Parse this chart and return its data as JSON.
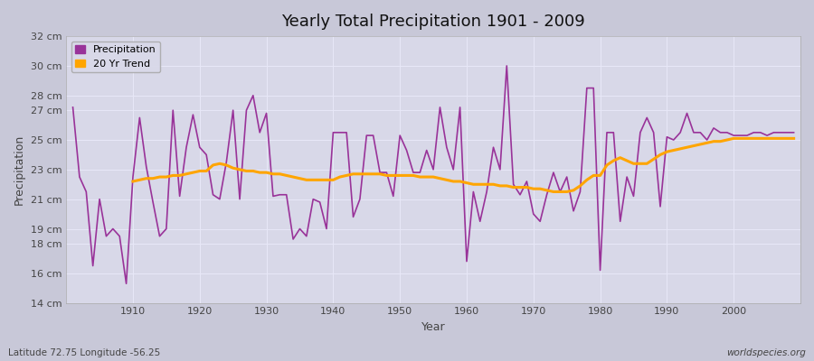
{
  "title": "Yearly Total Precipitation 1901 - 2009",
  "xlabel": "Year",
  "ylabel": "Precipitation",
  "subtitle_left": "Latitude 72.75 Longitude -56.25",
  "subtitle_right": "worldspecies.org",
  "years": [
    1901,
    1902,
    1903,
    1904,
    1905,
    1906,
    1907,
    1908,
    1909,
    1910,
    1911,
    1912,
    1913,
    1914,
    1915,
    1916,
    1917,
    1918,
    1919,
    1920,
    1921,
    1922,
    1923,
    1924,
    1925,
    1926,
    1927,
    1928,
    1929,
    1930,
    1931,
    1932,
    1933,
    1934,
    1935,
    1936,
    1937,
    1938,
    1939,
    1940,
    1941,
    1942,
    1943,
    1944,
    1945,
    1946,
    1947,
    1948,
    1949,
    1950,
    1951,
    1952,
    1953,
    1954,
    1955,
    1956,
    1957,
    1958,
    1959,
    1960,
    1961,
    1962,
    1963,
    1964,
    1965,
    1966,
    1967,
    1968,
    1969,
    1970,
    1971,
    1972,
    1973,
    1974,
    1975,
    1976,
    1977,
    1978,
    1979,
    1980,
    1981,
    1982,
    1983,
    1984,
    1985,
    1986,
    1987,
    1988,
    1989,
    1990,
    1991,
    1992,
    1993,
    1994,
    1995,
    1996,
    1997,
    1998,
    1999,
    2000,
    2001,
    2002,
    2003,
    2004,
    2005,
    2006,
    2007,
    2008,
    2009
  ],
  "precipitation": [
    27.2,
    22.5,
    21.5,
    16.5,
    21.0,
    18.5,
    19.0,
    18.5,
    15.3,
    22.5,
    26.5,
    23.2,
    20.8,
    18.5,
    19.0,
    27.0,
    21.2,
    24.5,
    26.7,
    24.5,
    24.0,
    21.3,
    21.0,
    23.5,
    27.0,
    21.0,
    27.0,
    28.0,
    25.5,
    26.8,
    21.2,
    21.3,
    21.3,
    18.3,
    19.0,
    18.5,
    21.0,
    20.8,
    19.0,
    25.5,
    25.5,
    25.5,
    19.8,
    21.0,
    25.3,
    25.3,
    22.8,
    22.8,
    21.2,
    25.3,
    24.3,
    22.8,
    22.8,
    24.3,
    23.0,
    27.2,
    24.5,
    23.0,
    27.2,
    16.8,
    21.5,
    19.5,
    21.5,
    24.5,
    23.0,
    30.0,
    22.0,
    21.3,
    22.2,
    20.0,
    19.5,
    21.3,
    22.8,
    21.5,
    22.5,
    20.2,
    21.5,
    28.5,
    28.5,
    16.2,
    25.5,
    25.5,
    19.5,
    22.5,
    21.2,
    25.5,
    26.5,
    25.5,
    20.5,
    25.2,
    25.0,
    25.5,
    26.8,
    25.5,
    25.5,
    25.0,
    25.8,
    25.5,
    25.5,
    25.3,
    25.3,
    25.3,
    25.5,
    25.5,
    25.3,
    25.5,
    25.5,
    25.5,
    25.5
  ],
  "trend_years": [
    1910,
    1911,
    1912,
    1913,
    1914,
    1915,
    1916,
    1917,
    1918,
    1919,
    1920,
    1921,
    1922,
    1923,
    1924,
    1925,
    1926,
    1927,
    1928,
    1929,
    1930,
    1931,
    1932,
    1933,
    1934,
    1935,
    1936,
    1937,
    1938,
    1939,
    1940,
    1941,
    1942,
    1943,
    1944,
    1945,
    1946,
    1947,
    1948,
    1949,
    1950,
    1951,
    1952,
    1953,
    1954,
    1955,
    1956,
    1957,
    1958,
    1959,
    1960,
    1961,
    1962,
    1963,
    1964,
    1965,
    1966,
    1967,
    1968,
    1969,
    1970,
    1971,
    1972,
    1973,
    1974,
    1975,
    1976,
    1977,
    1978,
    1979,
    1980,
    1981,
    1982,
    1983,
    1984,
    1985,
    1986,
    1987,
    1988,
    1989,
    1990,
    1991,
    1992,
    1993,
    1994,
    1995,
    1996,
    1997,
    1998,
    1999,
    2000,
    2001,
    2002,
    2003,
    2004,
    2005,
    2006,
    2007,
    2008,
    2009
  ],
  "trend": [
    22.2,
    22.3,
    22.4,
    22.4,
    22.5,
    22.5,
    22.6,
    22.6,
    22.7,
    22.8,
    22.9,
    22.9,
    23.3,
    23.4,
    23.3,
    23.1,
    23.0,
    22.9,
    22.9,
    22.8,
    22.8,
    22.7,
    22.7,
    22.6,
    22.5,
    22.4,
    22.3,
    22.3,
    22.3,
    22.3,
    22.3,
    22.5,
    22.6,
    22.7,
    22.7,
    22.7,
    22.7,
    22.7,
    22.6,
    22.6,
    22.6,
    22.6,
    22.6,
    22.5,
    22.5,
    22.5,
    22.4,
    22.3,
    22.2,
    22.2,
    22.1,
    22.0,
    22.0,
    22.0,
    22.0,
    21.9,
    21.9,
    21.8,
    21.8,
    21.8,
    21.7,
    21.7,
    21.6,
    21.5,
    21.5,
    21.5,
    21.6,
    21.9,
    22.3,
    22.6,
    22.6,
    23.3,
    23.6,
    23.8,
    23.6,
    23.4,
    23.4,
    23.4,
    23.7,
    24.0,
    24.2,
    24.3,
    24.4,
    24.5,
    24.6,
    24.7,
    24.8,
    24.9,
    24.9,
    25.0,
    25.1,
    25.1,
    25.1,
    25.1,
    25.1,
    25.1,
    25.1,
    25.1,
    25.1,
    25.1
  ],
  "precip_color": "#993399",
  "trend_color": "#FFA500",
  "plot_bg_color": "#d8d8e8",
  "fig_bg_color": "#c8c8d8",
  "grid_color": "#e8e8f8",
  "ylim": [
    14,
    32
  ],
  "yticks": [
    14,
    16,
    18,
    19,
    21,
    23,
    25,
    27,
    28,
    30,
    32
  ],
  "ytick_labels": [
    "14 cm",
    "16 cm",
    "18 cm",
    "19 cm",
    "21 cm",
    "23 cm",
    "25 cm",
    "27 cm",
    "28 cm",
    "30 cm",
    "32 cm"
  ],
  "xlim": [
    1900,
    2010
  ],
  "xticks": [
    1910,
    1920,
    1930,
    1940,
    1950,
    1960,
    1970,
    1980,
    1990,
    2000
  ],
  "legend_labels": [
    "Precipitation",
    "20 Yr Trend"
  ]
}
